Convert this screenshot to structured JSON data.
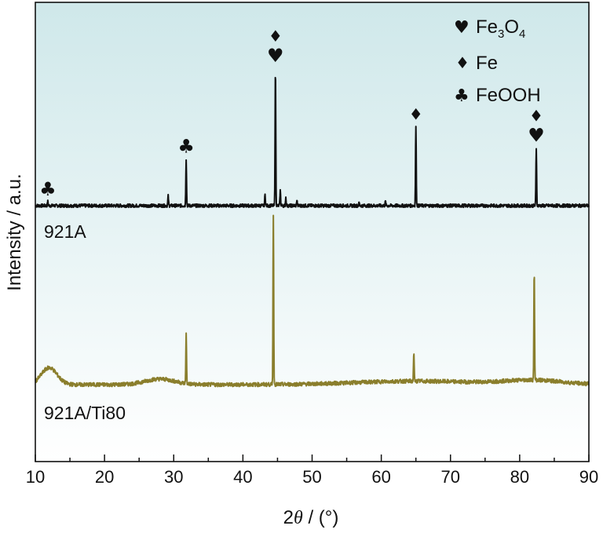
{
  "chart_data": {
    "type": "line",
    "xlabel": "2θ / (°)",
    "xlabel_parts": {
      "prefix": "2",
      "theta": "θ",
      "suffix": " / (°)"
    },
    "ylabel": "Intensity / a.u.",
    "xlim": [
      10,
      90
    ],
    "x_ticks": [
      "10",
      "20",
      "30",
      "40",
      "50",
      "60",
      "70",
      "80",
      "90"
    ],
    "y_ticks_shown": false,
    "grid": false,
    "background": {
      "top_color": "#cfe8ea",
      "bottom_color": "#ffffff",
      "style": "vertical-gradient"
    },
    "legend": {
      "position": "top-right",
      "entries": [
        {
          "symbol": "♥",
          "label": "Fe3O4",
          "label_base": "Fe",
          "sub1": "3",
          "mid": "O",
          "sub2": "4"
        },
        {
          "symbol": "♦",
          "label": "Fe"
        },
        {
          "symbol": "♣",
          "label": "FeOOH"
        }
      ]
    },
    "series": [
      {
        "name": "921A",
        "color": "#111111",
        "baseline": 1.0,
        "noise": 0.012,
        "background_bumps": [],
        "peaks": [
          {
            "x": 11.8,
            "height": 0.03
          },
          {
            "x": 29.2,
            "height": 0.07
          },
          {
            "x": 31.8,
            "height": 0.34
          },
          {
            "x": 43.2,
            "height": 0.08
          },
          {
            "x": 44.7,
            "height": 1.0
          },
          {
            "x": 45.4,
            "height": 0.11
          },
          {
            "x": 46.2,
            "height": 0.06
          },
          {
            "x": 47.8,
            "height": 0.04
          },
          {
            "x": 56.8,
            "height": 0.02
          },
          {
            "x": 60.6,
            "height": 0.03
          },
          {
            "x": 65.0,
            "height": 0.58
          },
          {
            "x": 82.4,
            "height": 0.42
          }
        ]
      },
      {
        "name": "921A/Ti80",
        "color": "#8a7e2c",
        "baseline": 0.0,
        "noise": 0.014,
        "background_bumps": [
          {
            "x": 12.0,
            "height": 0.12,
            "width": 1.6
          },
          {
            "x": 28.0,
            "height": 0.04,
            "width": 3.0
          },
          {
            "x": 65.0,
            "height": 0.025,
            "width": 12.0
          },
          {
            "x": 82.0,
            "height": 0.03,
            "width": 6.0
          }
        ],
        "peaks": [
          {
            "x": 31.8,
            "height": 0.35
          },
          {
            "x": 44.4,
            "height": 1.2
          },
          {
            "x": 64.7,
            "height": 0.2
          },
          {
            "x": 82.1,
            "height": 0.78
          }
        ]
      }
    ],
    "annotations": [
      {
        "series": "921A",
        "x": 11.8,
        "symbols": "♣"
      },
      {
        "series": "921A",
        "x": 31.8,
        "symbols": "♣"
      },
      {
        "series": "921A",
        "x": 44.7,
        "symbols": "♦♥"
      },
      {
        "series": "921A",
        "x": 65.0,
        "symbols": "♦"
      },
      {
        "series": "921A",
        "x": 82.4,
        "symbols": "♦♥"
      }
    ]
  }
}
